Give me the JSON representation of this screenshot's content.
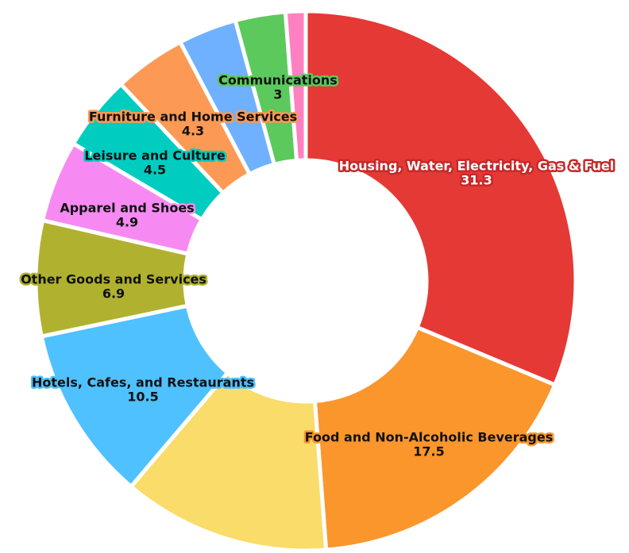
{
  "chart_data": {
    "type": "donut",
    "categories": [
      "Housing, Water, Electricity, Gas & Fuel",
      "Food and Non-Alcoholic Beverages",
      null,
      "Hotels, Cafes, and Restaurants",
      "Other Goods and Services",
      "Apparel and Shoes",
      "Leisure and Culture",
      "Furniture and Home Services",
      null,
      "Communications",
      null
    ],
    "values": [
      31.3,
      17.5,
      12.4,
      10.5,
      6.9,
      4.9,
      4.5,
      4.3,
      3.5,
      3,
      1.2
    ],
    "colors": [
      "#e53935",
      "#fb962c",
      "#f9dc6a",
      "#4fc1ff",
      "#b0b22f",
      "#f78af2",
      "#00cdc0",
      "#fc9a55",
      "#6fb1ff",
      "#5cc95c",
      "#ff80c0"
    ]
  }
}
